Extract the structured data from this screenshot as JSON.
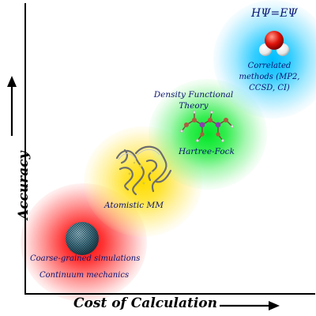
{
  "diagram": {
    "x_axis_label": "Cost of Calculation",
    "y_axis_label": "Accuracy",
    "equation": "HΨ=EΨ",
    "levels": [
      {
        "id": "coarse",
        "labels": [
          "Coarse-grained simulations",
          "Continuum mechanics"
        ],
        "color": "#ff0000",
        "icon": "sphere-mesh-icon"
      },
      {
        "id": "atomistic",
        "labels": [
          "Atomistic MM"
        ],
        "color": "#ffd800",
        "icon": "protein-ribbon-icon"
      },
      {
        "id": "quantum",
        "labels": [
          "Density Functional Theory",
          "Hartree-Fock"
        ],
        "color": "#00e62a",
        "icon": "molecule-ball-stick-icon"
      },
      {
        "id": "correlated",
        "labels": [
          "Correlated methods (MP2, CCSD, CI)"
        ],
        "color": "#00beff",
        "icon": "water-molecule-icon"
      }
    ],
    "text_color": "#0b1470",
    "axis_color": "#000000"
  }
}
